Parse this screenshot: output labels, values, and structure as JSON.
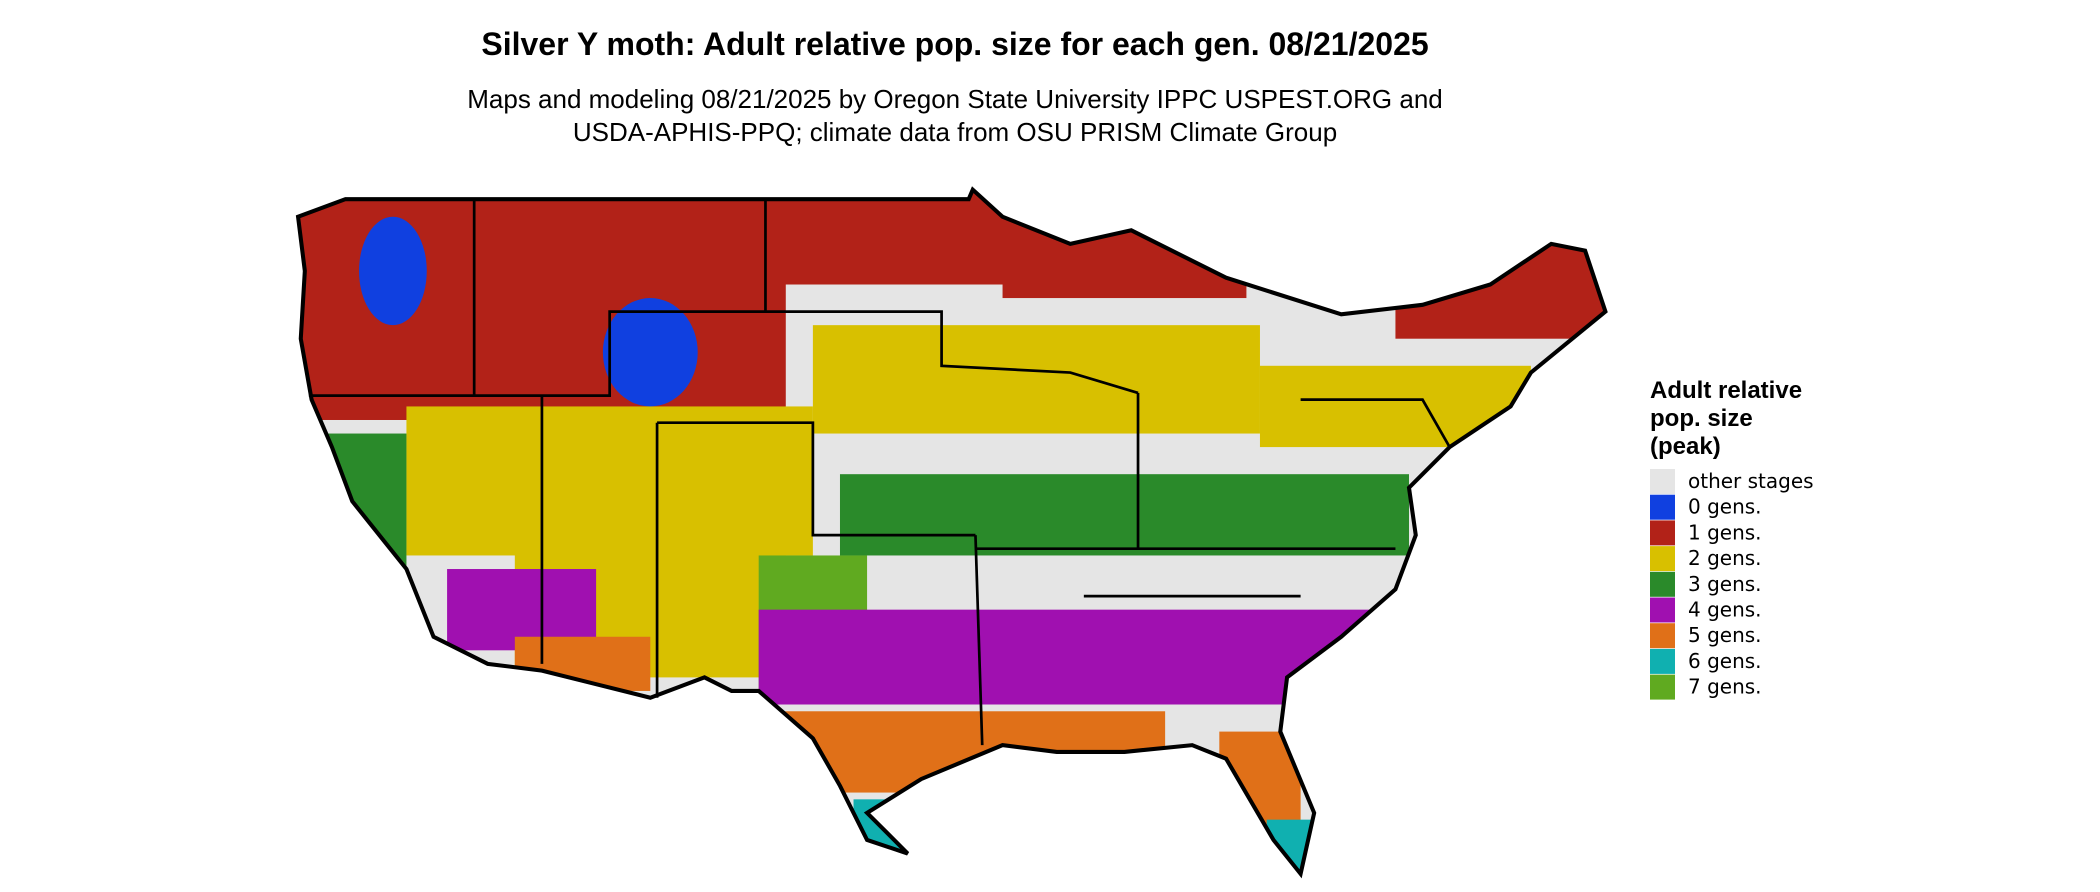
{
  "title": "Silver Y moth: Adult relative pop. size for each gen. 08/21/2025",
  "subtitle": [
    "Maps and modeling 08/21/2025 by Oregon State University IPPC USPEST.ORG and",
    "USDA-APHIS-PPQ; climate data from OSU PRISM Climate Group"
  ],
  "legend": {
    "title": [
      "Adult relative",
      "pop. size",
      "(peak)"
    ],
    "items": [
      {
        "label": "other stages",
        "color": "#e5e5e5"
      },
      {
        "label": "0 gens.",
        "color": "#1040e0"
      },
      {
        "label": "1 gens.",
        "color": "#b22218"
      },
      {
        "label": "2 gens.",
        "color": "#d8c000"
      },
      {
        "label": "3 gens.",
        "color": "#2a8a2a"
      },
      {
        "label": "4 gens.",
        "color": "#a010b0"
      },
      {
        "label": "5 gens.",
        "color": "#e07018"
      },
      {
        "label": "6 gens.",
        "color": "#10b0b0"
      },
      {
        "label": "7 gens.",
        "color": "#60aa20"
      }
    ]
  }
}
